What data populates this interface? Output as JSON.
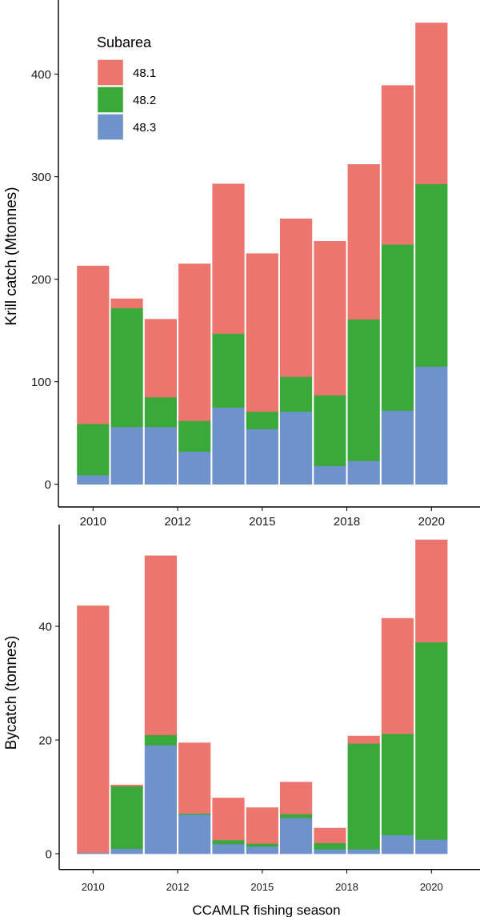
{
  "chart_data": [
    {
      "type": "bar",
      "stacked": true,
      "ylabel": "Krill catch (Mtonnes)",
      "xlabel": "",
      "ylim": [
        0,
        460
      ],
      "yticks": [
        0,
        100,
        200,
        300,
        400
      ],
      "xtick_labels": [
        "2010",
        "2012",
        "2015",
        "2018",
        "2020"
      ],
      "categories": [
        "2010",
        "2011",
        "2012",
        "2013",
        "2014",
        "2015",
        "2016",
        "2017",
        "2018",
        "2019",
        "2020"
      ],
      "legend": {
        "title": "Subarea",
        "placement": "top-left"
      },
      "series": [
        {
          "name": "48.3",
          "color": "#6E92CB",
          "values": [
            9,
            56,
            56,
            32,
            75,
            54,
            71,
            18,
            23,
            72,
            115
          ]
        },
        {
          "name": "48.2",
          "color": "#39A939",
          "values": [
            50,
            116,
            29,
            30,
            72,
            17,
            34,
            69,
            138,
            162,
            178
          ]
        },
        {
          "name": "48.1",
          "color": "#EC756E",
          "values": [
            154,
            9,
            76,
            153,
            146,
            154,
            154,
            150,
            151,
            155,
            157
          ]
        }
      ]
    },
    {
      "type": "bar",
      "stacked": true,
      "ylabel": "Bycatch (tonnes)",
      "xlabel": "CCAMLR fishing season",
      "ylim": [
        0,
        57
      ],
      "yticks": [
        0,
        20,
        40
      ],
      "xtick_labels": [
        "2010",
        "2012",
        "2015",
        "2018",
        "2020"
      ],
      "categories": [
        "2010",
        "2011",
        "2012",
        "2013",
        "2014",
        "2015",
        "2016",
        "2017",
        "2018",
        "2019",
        "2020"
      ],
      "series": [
        {
          "name": "48.3",
          "color": "#6E92CB",
          "values": [
            0.2,
            0.9,
            19.1,
            6.9,
            1.7,
            1.3,
            6.3,
            0.8,
            0.8,
            3.3,
            2.5
          ]
        },
        {
          "name": "48.2",
          "color": "#39A939",
          "values": [
            0,
            11.0,
            1.8,
            0.2,
            0.7,
            0.5,
            0.7,
            1.1,
            18.6,
            17.8,
            34.7
          ]
        },
        {
          "name": "48.1",
          "color": "#EC756E",
          "values": [
            43.4,
            0.2,
            31.5,
            12.4,
            7.4,
            6.3,
            5.6,
            2.6,
            1.3,
            20.3,
            18.0
          ]
        }
      ]
    }
  ]
}
